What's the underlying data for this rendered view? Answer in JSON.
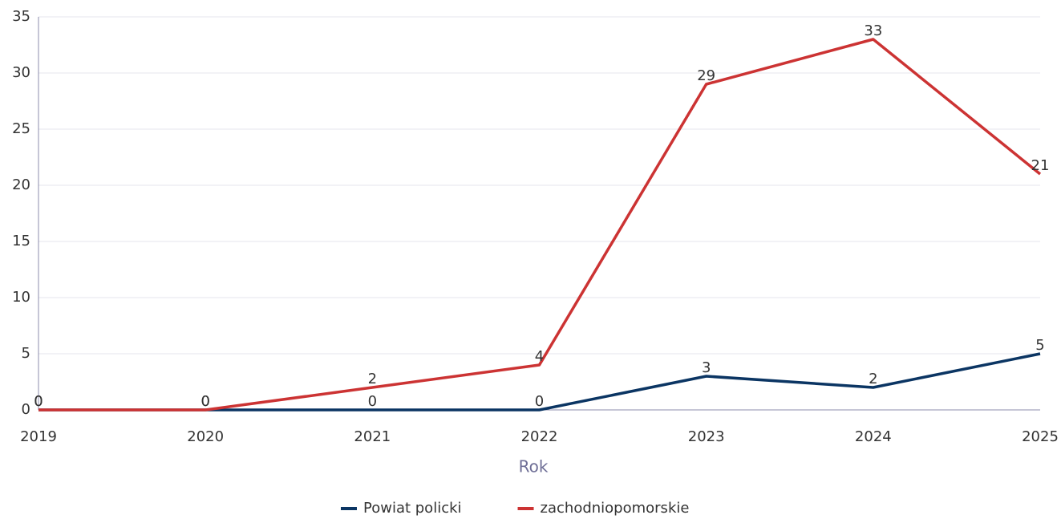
{
  "chart_data": {
    "type": "line",
    "x": [
      2019,
      2020,
      2021,
      2022,
      2023,
      2024,
      2025
    ],
    "xlim": [
      2019,
      2025
    ],
    "xticks": [
      2019,
      2020,
      2021,
      2022,
      2023,
      2024,
      2025
    ],
    "ylim": [
      0,
      35
    ],
    "yticks": [
      0,
      5,
      10,
      15,
      20,
      25,
      30,
      35
    ],
    "xlabel": "Rok",
    "grid": true,
    "legend": "bottom",
    "series": [
      {
        "name": "Powiat policki",
        "color": "#0b3563",
        "values": [
          0,
          0,
          0,
          0,
          3,
          2,
          5
        ]
      },
      {
        "name": "zachodniopomorskie",
        "color": "#cc3333",
        "values": [
          0,
          0,
          2,
          4,
          29,
          33,
          21
        ]
      }
    ]
  }
}
